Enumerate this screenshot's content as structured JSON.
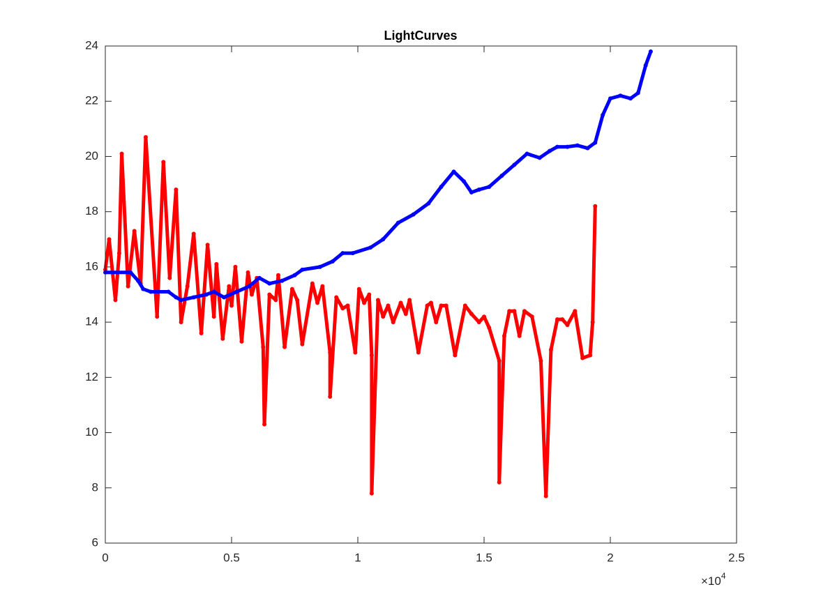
{
  "chart_data": {
    "type": "line",
    "title": "LightCurves",
    "x_scale_base": "×10",
    "x_scale_power": "4",
    "xlim": [
      0,
      25000
    ],
    "xticks": [
      0,
      {
        "value": 5000,
        "label": "0.5"
      },
      {
        "value": 10000,
        "label": "1"
      },
      {
        "value": 15000,
        "label": "1.5"
      },
      {
        "value": 20000,
        "label": "2"
      },
      {
        "value": 25000,
        "label": "2.5"
      }
    ],
    "ylim": [
      6,
      24
    ],
    "yticks": [
      6,
      8,
      10,
      12,
      14,
      16,
      18,
      20,
      22,
      24
    ],
    "grid": false,
    "series": [
      {
        "color": "#ff0000",
        "x": [
          0,
          150,
          400,
          550,
          650,
          900,
          1150,
          1400,
          1600,
          2050,
          2300,
          2550,
          2800,
          3000,
          3250,
          3500,
          3800,
          4050,
          4300,
          4400,
          4650,
          4900,
          5000,
          5150,
          5400,
          5650,
          5800,
          6000,
          6250,
          6300,
          6500,
          6750,
          6850,
          7100,
          7400,
          7600,
          7800,
          8200,
          8400,
          8600,
          8900,
          8900,
          9150,
          9400,
          9600,
          9900,
          10050,
          10250,
          10450,
          10550,
          10550,
          10800,
          11000,
          11200,
          11400,
          11700,
          11900,
          12050,
          12400,
          12750,
          12900,
          13100,
          13300,
          13500,
          13850,
          14250,
          14500,
          14800,
          15000,
          15200,
          15600,
          15600,
          15800,
          16000,
          16200,
          16400,
          16600,
          16900,
          17250,
          17450,
          17650,
          17900,
          18100,
          18300,
          18600,
          18900,
          19200,
          19300,
          19400
        ],
        "values": [
          15.9,
          17.0,
          14.8,
          16.5,
          20.1,
          15.3,
          17.3,
          15.4,
          20.7,
          14.2,
          19.8,
          15.6,
          18.8,
          14.0,
          15.3,
          17.2,
          13.6,
          16.8,
          14.2,
          16.1,
          13.4,
          15.3,
          14.6,
          16.0,
          13.3,
          15.8,
          15.0,
          15.6,
          13.1,
          10.3,
          15.0,
          14.8,
          15.7,
          13.1,
          15.2,
          14.8,
          13.2,
          15.4,
          14.7,
          15.3,
          12.9,
          11.3,
          14.9,
          14.5,
          14.6,
          12.9,
          15.2,
          14.7,
          15.0,
          12.8,
          7.8,
          14.8,
          14.2,
          14.6,
          14.0,
          14.7,
          14.3,
          14.8,
          12.9,
          14.6,
          14.7,
          14.0,
          14.6,
          14.6,
          12.8,
          14.6,
          14.3,
          14.0,
          14.2,
          13.8,
          12.6,
          8.2,
          13.5,
          14.4,
          14.4,
          13.5,
          14.4,
          14.2,
          12.6,
          7.7,
          13.0,
          14.1,
          14.1,
          13.9,
          14.4,
          12.7,
          12.8,
          14.0,
          18.2
        ]
      },
      {
        "color": "#0000ff",
        "x": [
          0,
          1000,
          1300,
          1500,
          1800,
          2500,
          2800,
          3000,
          3500,
          4000,
          4300,
          4700,
          5200,
          5700,
          6100,
          6500,
          7000,
          7500,
          7800,
          8500,
          9000,
          9400,
          9800,
          10500,
          11000,
          11600,
          12200,
          12800,
          13300,
          13800,
          14200,
          14500,
          14800,
          15200,
          15700,
          16200,
          16700,
          17200,
          17600,
          17900,
          18300,
          18700,
          19100,
          19400,
          19700,
          20000,
          20400,
          20800,
          21100,
          21400,
          21600
        ],
        "values": [
          15.8,
          15.8,
          15.5,
          15.2,
          15.1,
          15.1,
          14.9,
          14.8,
          14.9,
          15.0,
          15.1,
          14.9,
          15.1,
          15.3,
          15.6,
          15.4,
          15.5,
          15.7,
          15.9,
          16.0,
          16.2,
          16.5,
          16.5,
          16.7,
          17.0,
          17.6,
          17.9,
          18.3,
          18.9,
          19.45,
          19.1,
          18.7,
          18.8,
          18.9,
          19.3,
          19.7,
          20.1,
          19.95,
          20.2,
          20.35,
          20.35,
          20.4,
          20.3,
          20.5,
          21.5,
          22.1,
          22.2,
          22.1,
          22.3,
          23.3,
          23.8
        ]
      }
    ]
  }
}
